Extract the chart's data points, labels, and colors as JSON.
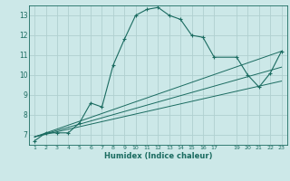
{
  "xlabel": "Humidex (Indice chaleur)",
  "bg_color": "#cce8e8",
  "grid_color": "#b0d0d0",
  "line_color": "#1a6b60",
  "xlim": [
    0.5,
    23.5
  ],
  "ylim": [
    6.5,
    13.5
  ],
  "xticks": [
    1,
    2,
    3,
    4,
    5,
    6,
    7,
    8,
    9,
    10,
    11,
    12,
    13,
    14,
    15,
    16,
    17,
    19,
    20,
    21,
    22,
    23
  ],
  "yticks": [
    7,
    8,
    9,
    10,
    11,
    12,
    13
  ],
  "main_x": [
    1,
    2,
    3,
    4,
    5,
    6,
    7,
    8,
    9,
    10,
    11,
    12,
    13,
    14,
    15,
    16,
    17,
    19,
    20,
    21,
    22,
    23
  ],
  "main_y": [
    6.7,
    7.1,
    7.1,
    7.1,
    7.6,
    8.6,
    8.4,
    10.5,
    11.8,
    13.0,
    13.3,
    13.4,
    13.0,
    12.8,
    12.0,
    11.9,
    10.9,
    10.9,
    10.0,
    9.4,
    10.1,
    11.2
  ],
  "line1_x": [
    1,
    23
  ],
  "line1_y": [
    6.9,
    11.2
  ],
  "line2_x": [
    1,
    23
  ],
  "line2_y": [
    6.9,
    10.4
  ],
  "line3_x": [
    1,
    23
  ],
  "line3_y": [
    6.9,
    9.7
  ]
}
